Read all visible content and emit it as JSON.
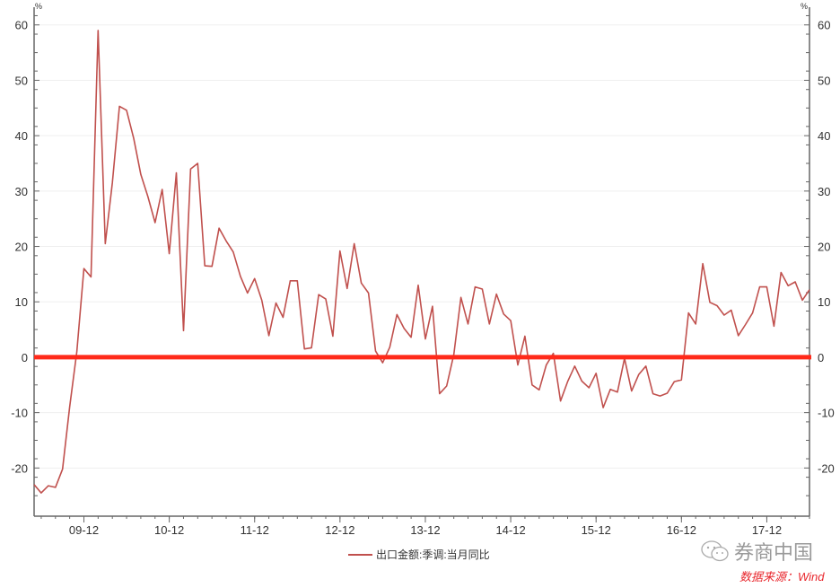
{
  "chart_data": {
    "type": "line",
    "title": "",
    "xlabel": "",
    "ylabel": "",
    "y_unit_left": "%",
    "y_unit_right": "%",
    "ylim": [
      -28.7,
      63.2
    ],
    "yticks": [
      -20,
      -10,
      0,
      10,
      20,
      30,
      40,
      50,
      60
    ],
    "x_start": "2009-05",
    "x_end": "2018-06",
    "xtick_labels": [
      "09-12",
      "10-12",
      "11-12",
      "12-12",
      "13-12",
      "14-12",
      "15-12",
      "16-12",
      "17-12"
    ],
    "grid": true,
    "reference_line": {
      "y": 0,
      "color": "#ff2a1a"
    },
    "legend_position": "bottom-center",
    "series": [
      {
        "name": "出口金额:季调:当月同比",
        "color": "#c0504d",
        "values": [
          -23,
          -24.5,
          -23.2,
          -23.5,
          -20.2,
          -9,
          1,
          16,
          14.5,
          59,
          20.5,
          31.5,
          45.3,
          44.6,
          39.5,
          33,
          29,
          24.3,
          30.3,
          18.7,
          33.3,
          4.8,
          34,
          35,
          16.5,
          16.4,
          23.3,
          21,
          19,
          14.6,
          11.6,
          14.2,
          10.3,
          3.9,
          9.8,
          7.2,
          13.8,
          13.8,
          1.5,
          1.7,
          11.3,
          10.5,
          3.8,
          19.2,
          12.4,
          20.5,
          13.4,
          11.6,
          1.1,
          -1,
          1.8,
          7.7,
          5.2,
          3.6,
          13,
          3.3,
          9.2,
          -6.6,
          -5.2,
          0.5,
          10.8,
          6,
          12.7,
          12.3,
          6,
          11.4,
          7.8,
          6.6,
          -1.4,
          3.8,
          -5,
          -5.9,
          -1.4,
          0.7,
          -7.9,
          -4.4,
          -1.6,
          -4.3,
          -5.5,
          -2.9,
          -9.1,
          -5.8,
          -6.3,
          -0.2,
          -6.1,
          -3.1,
          -1.6,
          -6.6,
          -7,
          -6.5,
          -4.4,
          -4.1,
          8,
          6,
          16.9,
          9.9,
          9.3,
          7.6,
          8.5,
          3.9,
          5.9,
          8,
          12.7,
          12.7,
          5.6,
          15.3,
          12.9,
          13.6,
          10.3,
          12.2
        ]
      }
    ]
  },
  "watermark": "券商中国",
  "source": {
    "text": "数据来源：Wind",
    "color": "#e8262c"
  }
}
